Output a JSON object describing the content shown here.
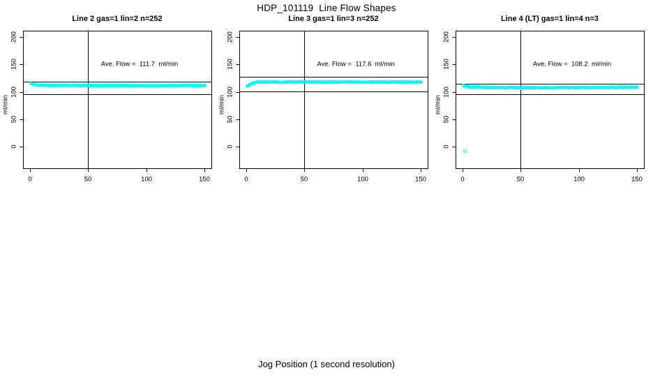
{
  "figure": {
    "main_title": "HDP_101119  Line Flow Shapes",
    "x_axis_label": "Jog Position (1 second resolution)",
    "background_color": "#FFFFFF",
    "axis_color": "#000000",
    "point_color": "#00FFFF"
  },
  "chart_data": [
    {
      "type": "scatter",
      "title": "Line 2 gas=1 lin=2 n=252",
      "annotation": "Ave. Flow =  111.7  ml/min",
      "ave_flow_ml_min": 111.7,
      "n_label": 252,
      "render_n": 252,
      "ylabel": "ml/min",
      "xlim": [
        0,
        150
      ],
      "ylim": [
        0,
        200
      ],
      "xticks": [
        "0",
        "50",
        "100",
        "150"
      ],
      "yticks": [
        "0",
        "50",
        "100",
        "150",
        "200"
      ],
      "xtick_values": [
        0,
        50,
        100,
        150
      ],
      "ytick_values": [
        0,
        50,
        100,
        150,
        200
      ],
      "vline_x": 50,
      "hlines": [
        118,
        95
      ],
      "series_profile": [
        [
          0.8,
          116.3
        ],
        [
          2,
          114.5
        ],
        [
          4,
          113.0
        ],
        [
          7,
          112.2
        ],
        [
          12,
          111.8
        ],
        [
          60,
          111.5
        ],
        [
          150,
          111.5
        ]
      ],
      "noise_amplitude": 0.9,
      "outliers": []
    },
    {
      "type": "scatter",
      "title": "Line 3 gas=1 lin=3 n=252",
      "annotation": "Ave. Flow =  117.6  ml/min",
      "ave_flow_ml_min": 117.6,
      "n_label": 252,
      "render_n": 252,
      "ylabel": "ml/min",
      "xlim": [
        0,
        150
      ],
      "ylim": [
        0,
        200
      ],
      "xticks": [
        "0",
        "50",
        "100",
        "150"
      ],
      "yticks": [
        "0",
        "50",
        "100",
        "150",
        "200"
      ],
      "xtick_values": [
        0,
        50,
        100,
        150
      ],
      "ytick_values": [
        0,
        50,
        100,
        150,
        200
      ],
      "vline_x": 50,
      "hlines": [
        127,
        101
      ],
      "series_profile": [
        [
          0.8,
          109.8
        ],
        [
          2,
          111.5
        ],
        [
          3.5,
          114.0
        ],
        [
          5.5,
          116.2
        ],
        [
          9,
          117.4
        ],
        [
          18,
          117.8
        ],
        [
          150,
          117.6
        ]
      ],
      "noise_amplitude": 0.9,
      "outliers": []
    },
    {
      "type": "scatter",
      "title": "Line 4 (LT) gas=1 lin=4 n=3",
      "annotation": "Ave. Flow =  108.2  ml/min",
      "ave_flow_ml_min": 108.2,
      "n_label": 3,
      "render_n": 252,
      "ylabel": "ml/min",
      "xlim": [
        0,
        150
      ],
      "ylim": [
        0,
        200
      ],
      "xticks": [
        "0",
        "50",
        "100",
        "150"
      ],
      "yticks": [
        "0",
        "50",
        "100",
        "150",
        "200"
      ],
      "xtick_values": [
        0,
        50,
        100,
        150
      ],
      "ytick_values": [
        0,
        50,
        100,
        150,
        200
      ],
      "vline_x": 50,
      "hlines": [
        115,
        95
      ],
      "series_profile": [
        [
          0.8,
          111.3
        ],
        [
          3,
          110.0
        ],
        [
          8,
          108.8
        ],
        [
          20,
          108.0
        ],
        [
          50,
          107.4
        ],
        [
          90,
          107.6
        ],
        [
          120,
          107.9
        ],
        [
          150,
          108.4
        ]
      ],
      "noise_amplitude": 1.0,
      "outliers": [
        [
          2,
          -8
        ]
      ]
    }
  ]
}
